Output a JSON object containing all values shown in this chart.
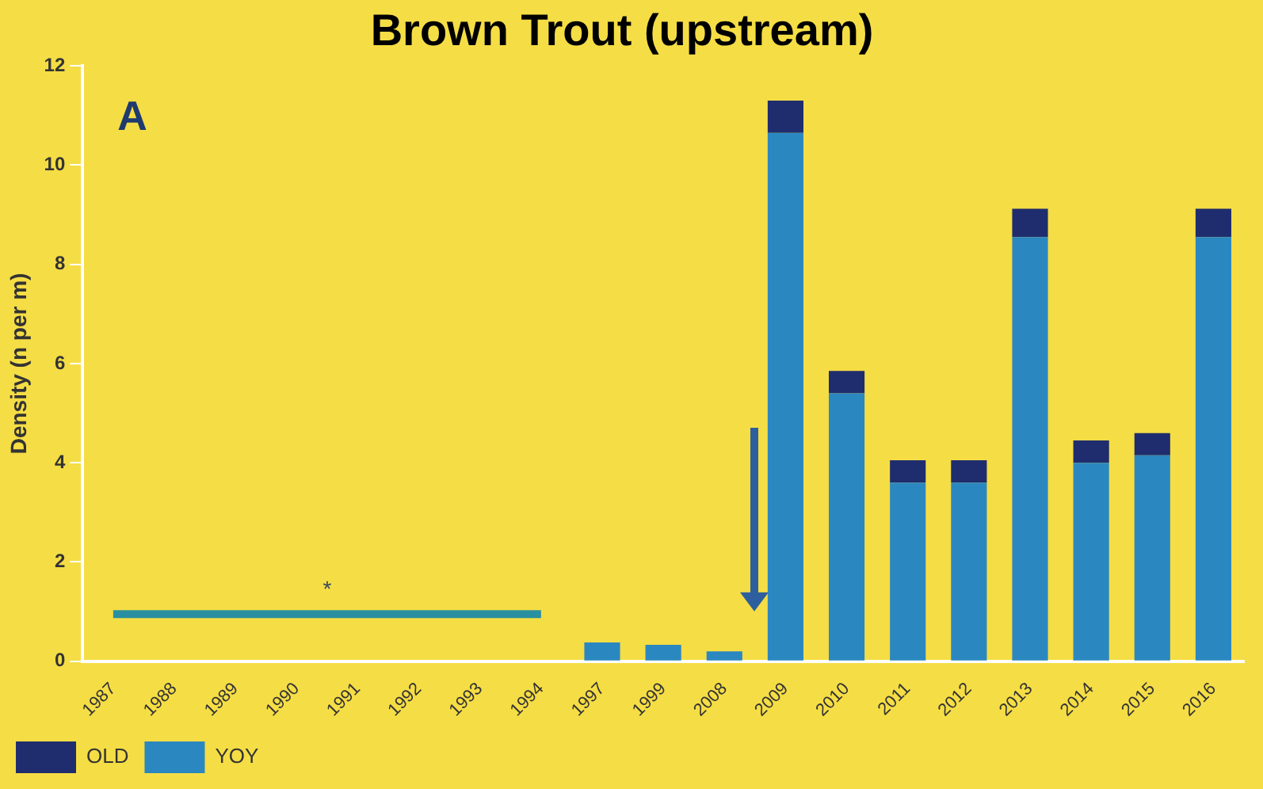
{
  "chart_data": {
    "type": "bar",
    "title": "Brown Trout (upstream)",
    "ylabel": "Density (n per m)",
    "categories": [
      "1987",
      "1988",
      "1989",
      "1990",
      "1991",
      "1992",
      "1993",
      "1994",
      "1997",
      "1999",
      "2008",
      "2009",
      "2010",
      "2011",
      "2012",
      "2013",
      "2014",
      "2015",
      "2016"
    ],
    "series": [
      {
        "name": "YOY",
        "color": "#2b87c0",
        "values": [
          null,
          null,
          null,
          null,
          null,
          null,
          null,
          null,
          0.38,
          0.33,
          0.2,
          10.65,
          5.4,
          3.6,
          3.6,
          8.55,
          4.0,
          4.15,
          8.55
        ]
      },
      {
        "name": "OLD",
        "color": "#1f2d6e",
        "values": [
          null,
          null,
          null,
          null,
          null,
          null,
          null,
          null,
          null,
          null,
          null,
          0.65,
          0.45,
          0.45,
          0.45,
          0.57,
          0.45,
          0.45,
          0.57
        ]
      },
      {
        "type": "line",
        "color": "#2a8fa0",
        "values": [
          0.95,
          0.95,
          0.95,
          0.95,
          0.95,
          0.95,
          0.95,
          0.95,
          null,
          null,
          null,
          null,
          null,
          null,
          null,
          null,
          null,
          null,
          null
        ]
      }
    ],
    "stacked": true,
    "ylim": [
      0,
      12
    ],
    "yticks": [
      0,
      2,
      4,
      6,
      8,
      10,
      12
    ],
    "grid": false,
    "legend": "bottom left",
    "marker": "none",
    "annotations": [
      "A",
      "*"
    ]
  }
}
